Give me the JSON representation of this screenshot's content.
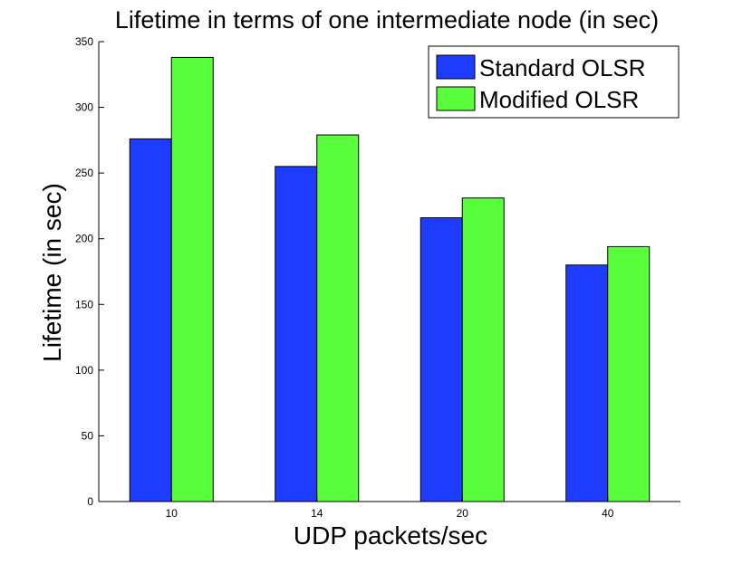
{
  "colors": {
    "standard": "#1e3cff",
    "modified": "#5aff3c",
    "axis": "#000000",
    "background": "#ffffff"
  },
  "chart_data": {
    "type": "bar",
    "title": "Lifetime in terms of one intermediate node (in sec)",
    "xlabel": "UDP packets/sec",
    "ylabel": "Lifetime (in sec)",
    "categories": [
      "10",
      "14",
      "20",
      "40"
    ],
    "ylim": [
      0,
      350
    ],
    "yticks": [
      0,
      50,
      100,
      150,
      200,
      250,
      300,
      350
    ],
    "series": [
      {
        "name": "Standard OLSR",
        "color": "#1e3cff",
        "values": [
          276,
          255,
          216,
          180
        ]
      },
      {
        "name": "Modified OLSR",
        "color": "#5aff3c",
        "values": [
          338,
          279,
          231,
          194
        ]
      }
    ],
    "legend": {
      "placement": "top-right"
    },
    "grid": false
  }
}
